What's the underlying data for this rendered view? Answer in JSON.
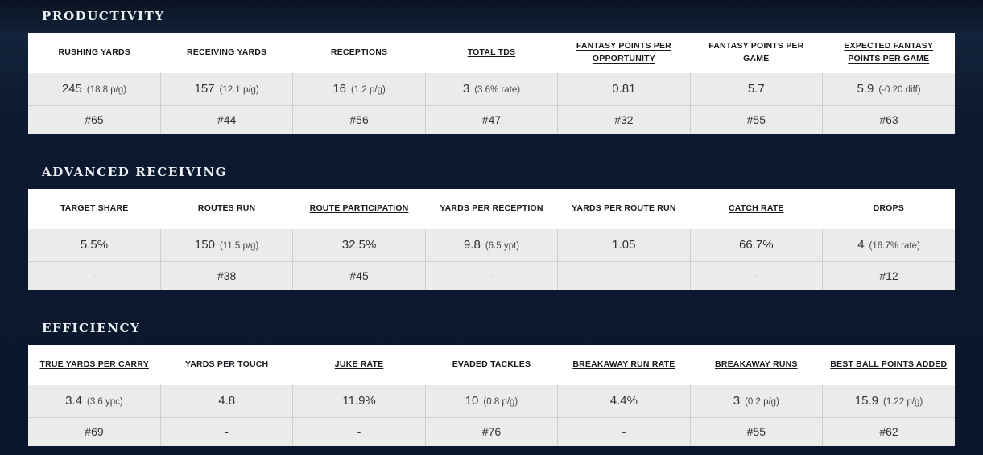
{
  "theme": {
    "page_bg": "#0c1a30",
    "table_header_bg": "#ffffff",
    "cell_bg": "#ebebeb",
    "cell_divider": "#cdcdcd",
    "header_text": "#17191e",
    "value_text": "#333333",
    "title_text": "#eef1f5"
  },
  "sections": [
    {
      "title": "PRODUCTIVITY",
      "columns": [
        {
          "label": "RUSHING YARDS",
          "underlined": false,
          "value": "245",
          "note": "(18.8 p/g)",
          "rank": "#65"
        },
        {
          "label": "RECEIVING YARDS",
          "underlined": false,
          "value": "157",
          "note": "(12.1 p/g)",
          "rank": "#44"
        },
        {
          "label": "RECEPTIONS",
          "underlined": false,
          "value": "16",
          "note": "(1.2 p/g)",
          "rank": "#56"
        },
        {
          "label": "TOTAL TDS",
          "underlined": true,
          "value": "3",
          "note": "(3.6% rate)",
          "rank": "#47"
        },
        {
          "label": "FANTASY POINTS PER OPPORTUNITY",
          "underlined": true,
          "value": "0.81",
          "note": "",
          "rank": "#32"
        },
        {
          "label": "FANTASY POINTS PER GAME",
          "underlined": false,
          "value": "5.7",
          "note": "",
          "rank": "#55"
        },
        {
          "label": "EXPECTED FANTASY POINTS PER GAME",
          "underlined": true,
          "value": "5.9",
          "note": "(-0.20 diff)",
          "rank": "#63"
        }
      ]
    },
    {
      "title": "ADVANCED RECEIVING",
      "columns": [
        {
          "label": "TARGET SHARE",
          "underlined": false,
          "value": "5.5%",
          "note": "",
          "rank": "-"
        },
        {
          "label": "ROUTES RUN",
          "underlined": false,
          "value": "150",
          "note": "(11.5 p/g)",
          "rank": "#38"
        },
        {
          "label": "ROUTE PARTICIPATION",
          "underlined": true,
          "value": "32.5%",
          "note": "",
          "rank": "#45"
        },
        {
          "label": "YARDS PER RECEPTION",
          "underlined": false,
          "value": "9.8",
          "note": "(6.5 ypt)",
          "rank": "-"
        },
        {
          "label": "YARDS PER ROUTE RUN",
          "underlined": false,
          "value": "1.05",
          "note": "",
          "rank": "-"
        },
        {
          "label": "CATCH RATE",
          "underlined": true,
          "value": "66.7%",
          "note": "",
          "rank": "-"
        },
        {
          "label": "DROPS",
          "underlined": false,
          "value": "4",
          "note": "(16.7% rate)",
          "rank": "#12"
        }
      ]
    },
    {
      "title": "EFFICIENCY",
      "columns": [
        {
          "label": "TRUE YARDS PER CARRY",
          "underlined": true,
          "value": "3.4",
          "note": "(3.6 ypc)",
          "rank": "#69"
        },
        {
          "label": "YARDS PER TOUCH",
          "underlined": false,
          "value": "4.8",
          "note": "",
          "rank": "-"
        },
        {
          "label": "JUKE RATE",
          "underlined": true,
          "value": "11.9%",
          "note": "",
          "rank": "-"
        },
        {
          "label": "EVADED TACKLES",
          "underlined": false,
          "value": "10",
          "note": "(0.8 p/g)",
          "rank": "#76"
        },
        {
          "label": "BREAKAWAY RUN RATE",
          "underlined": true,
          "value": "4.4%",
          "note": "",
          "rank": "-"
        },
        {
          "label": "BREAKAWAY RUNS",
          "underlined": true,
          "value": "3",
          "note": "(0.2 p/g)",
          "rank": "#55"
        },
        {
          "label": "BEST BALL POINTS ADDED",
          "underlined": true,
          "value": "15.9",
          "note": "(1.22 p/g)",
          "rank": "#62"
        }
      ]
    }
  ]
}
